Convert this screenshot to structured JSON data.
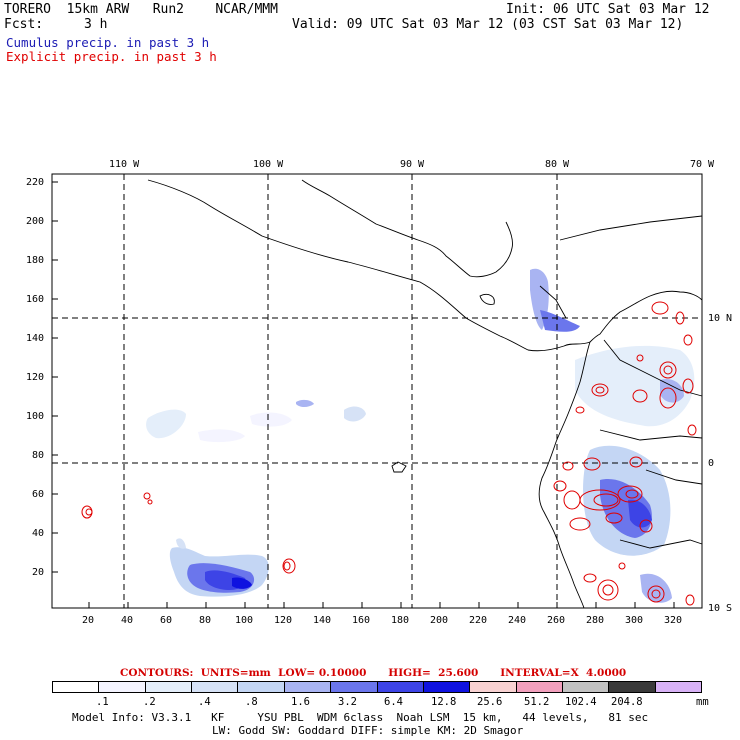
{
  "header": {
    "model": "TORERO  15km ARW   Run2    NCAR/MMM",
    "init": "Init: 06 UTC Sat 03 Mar 12",
    "fcst_label": "Fcst:",
    "fcst_value": "3 h",
    "valid": "Valid: 09 UTC Sat 03 Mar 12 (03 CST Sat 03 Mar 12)",
    "line_cumulus": "Cumulus precip. in past 3 h",
    "line_explicit": "Explicit precip. in past 3 h"
  },
  "axes": {
    "top_lon": [
      "110 W",
      "100 W",
      "90 W",
      "80 W",
      "70 W"
    ],
    "right_lat": [
      "10 N",
      "0",
      "10 S"
    ],
    "left_y": [
      "220",
      "200",
      "180",
      "160",
      "140",
      "120",
      "100",
      "80",
      "60",
      "40",
      "20"
    ],
    "bottom_x": [
      "20",
      "40",
      "60",
      "80",
      "100",
      "120",
      "140",
      "160",
      "180",
      "200",
      "220",
      "240",
      "260",
      "280",
      "300",
      "320"
    ]
  },
  "contours_line": "CONTOURS:  UNITS=mm  LOW= 0.10000      HIGH=  25.600      INTERVAL=X  4.0000",
  "colorbar": {
    "colors": [
      "#ffffff",
      "#f4f4ff",
      "#e4eefa",
      "#d6e2f6",
      "#c4d6f4",
      "#a9b4f2",
      "#6b76ec",
      "#3d44e6",
      "#0f12e0",
      "#f8d2d2",
      "#f2a0bd",
      "#c2c2c2",
      "#3a3a3a",
      "#d8b2f6"
    ],
    "labels": [
      ".1",
      ".2",
      ".4",
      ".8",
      "1.6",
      "3.2",
      "6.4",
      "12.8",
      "25.6",
      "51.2",
      "102.4",
      "204.8"
    ],
    "unit": "mm"
  },
  "footer": {
    "line1": "Model Info: V3.3.1   KF     YSU PBL  WDM 6class  Noah LSM  15 km,   44 levels,   81 sec",
    "line2": "LW: Godd SW: Goddard DIFF: simple KM: 2D Smagor"
  }
}
